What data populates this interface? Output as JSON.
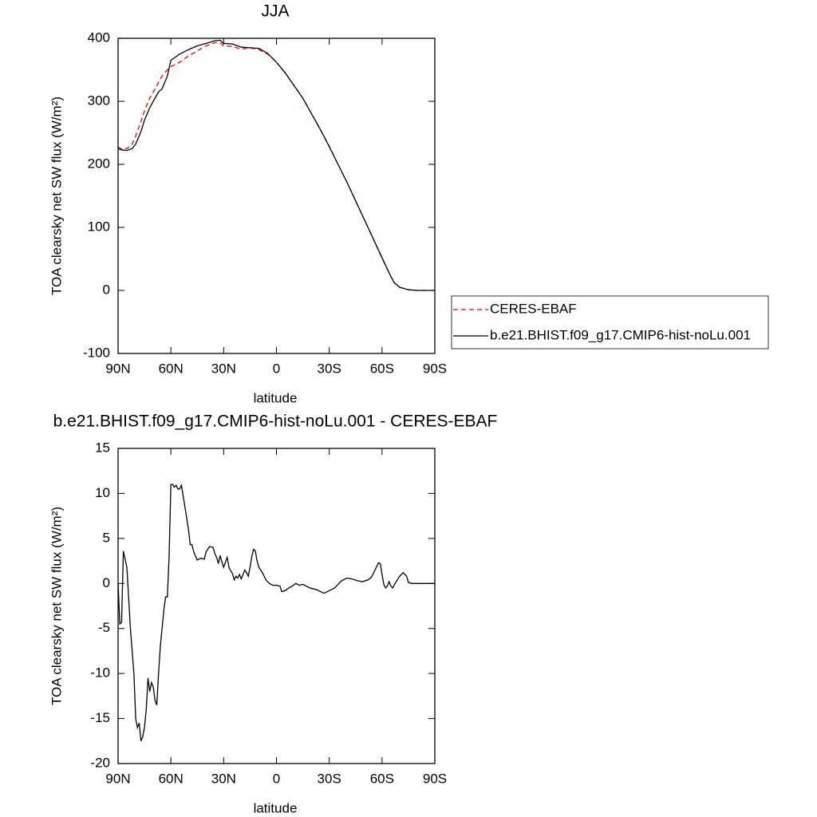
{
  "chart_data": [
    {
      "type": "line",
      "title": "JJA",
      "x_label": "latitude",
      "y_label": "TOA clearsky net SW flux (W/m²)",
      "x": [
        90,
        88,
        85,
        82,
        80,
        77,
        75,
        72,
        70,
        67,
        65,
        62,
        60,
        55,
        50,
        45,
        40,
        35,
        32,
        30,
        25,
        20,
        15,
        10,
        5,
        0,
        -5,
        -10,
        -15,
        -20,
        -25,
        -30,
        -35,
        -40,
        -45,
        -50,
        -55,
        -60,
        -65,
        -67,
        -70,
        -75,
        -80,
        -85,
        -90
      ],
      "xlim": [
        90,
        -90
      ],
      "xticks": [
        {
          "value": 90,
          "label": "90N"
        },
        {
          "value": 60,
          "label": "60N"
        },
        {
          "value": 30,
          "label": "30N"
        },
        0,
        {
          "value": -30,
          "label": "30S"
        },
        {
          "value": -60,
          "label": "60S"
        },
        {
          "value": -90,
          "label": "90S"
        }
      ],
      "ylim": [
        -100,
        400
      ],
      "yticks": [
        -100,
        0,
        100,
        200,
        300,
        400
      ],
      "legend": "outside-right",
      "series": [
        {
          "name": "CERES-EBAF",
          "color": "#ff0000",
          "dash": "dashed",
          "values": [
            228,
            224,
            225,
            232,
            245,
            268,
            285,
            305,
            315,
            330,
            340,
            350,
            355,
            362,
            372,
            380,
            388,
            393,
            393,
            388,
            387,
            383,
            385,
            382,
            375,
            362,
            345,
            325,
            305,
            280,
            255,
            229,
            200,
            172,
            142,
            112,
            82,
            51,
            22,
            12,
            5,
            1,
            0,
            0,
            0
          ]
        },
        {
          "name": "b.e21.BHIST.f09_g17.CMIP6-hist-noLu.001",
          "color": "#000000",
          "dash": "solid",
          "values": [
            225,
            223,
            222,
            225,
            232,
            252,
            270,
            290,
            300,
            315,
            320,
            340,
            365,
            375,
            382,
            388,
            392,
            396,
            397,
            392,
            391,
            386,
            385,
            384,
            376,
            362,
            345,
            325,
            305,
            280,
            255,
            228,
            200,
            172,
            142,
            112,
            82,
            52,
            22,
            12,
            5,
            1,
            0,
            0,
            0
          ]
        }
      ]
    },
    {
      "type": "line",
      "title": "b.e21.BHIST.f09_g17.CMIP6-hist-noLu.001 - CERES-EBAF",
      "x_label": "latitude",
      "y_label": "TOA clearsky net SW flux (W/m²)",
      "x": [
        90,
        89,
        88,
        87,
        85,
        83,
        81,
        80,
        79,
        78,
        77,
        76,
        75,
        74,
        73,
        72,
        71,
        70,
        69,
        68,
        67,
        66,
        64,
        63,
        62,
        61,
        60,
        59,
        58,
        57,
        56,
        55,
        54,
        52,
        50,
        49,
        48,
        47,
        45,
        43,
        41,
        40,
        38,
        36,
        35,
        34,
        33,
        32,
        31,
        30,
        28,
        27,
        26,
        25,
        24,
        23,
        22,
        21,
        20,
        18,
        17,
        16,
        15,
        14,
        13,
        12,
        11,
        10,
        8,
        6,
        4,
        2,
        0,
        -2,
        -3,
        -5,
        -7,
        -9,
        -11,
        -13,
        -15,
        -17,
        -19,
        -21,
        -23,
        -25,
        -27,
        -29,
        -31,
        -33,
        -35,
        -37,
        -40,
        -43,
        -46,
        -49,
        -52,
        -54,
        -56,
        -58,
        -59,
        -60,
        -61,
        -62,
        -63,
        -64,
        -65,
        -66,
        -68,
        -70,
        -72,
        -74,
        -75,
        -77,
        -80,
        -90
      ],
      "values": [
        0,
        -4.5,
        -4.3,
        3.6,
        1.8,
        -5,
        -10,
        -15,
        -16,
        -15.5,
        -17.5,
        -17,
        -16,
        -14,
        -10.5,
        -12,
        -11,
        -11.5,
        -13,
        -13.5,
        -10,
        -7,
        -3,
        -1.5,
        -1.5,
        3,
        11,
        11,
        10.7,
        10.9,
        10.5,
        10.5,
        10.9,
        8.5,
        6,
        4.3,
        4.3,
        3.5,
        2.6,
        2.8,
        2.7,
        3.5,
        4.1,
        4,
        3.3,
        2.9,
        2.2,
        3.1,
        2.4,
        1.8,
        2.9,
        1.8,
        1.4,
        1.1,
        0.4,
        0.8,
        0.6,
        1,
        0.5,
        1.5,
        1.2,
        0.8,
        1.8,
        3,
        3.8,
        3.6,
        2.5,
        1.8,
        1.2,
        0.4,
        0,
        -0.2,
        -0.2,
        -0.3,
        -0.9,
        -0.8,
        -0.5,
        -0.3,
        0,
        -0.2,
        -0.1,
        -0.3,
        -0.5,
        -0.6,
        -0.7,
        -0.9,
        -1.1,
        -0.9,
        -0.7,
        -0.5,
        -0.1,
        0.3,
        0.6,
        0.5,
        0.3,
        0.2,
        0.4,
        0.7,
        1.5,
        2.3,
        2.2,
        1,
        -0.1,
        -0.5,
        -0.3,
        0.2,
        -0.3,
        -0.5,
        0.2,
        0.8,
        1.2,
        0.8,
        0.1,
        0,
        0,
        0
      ],
      "color": "#000000",
      "xlim": [
        90,
        -90
      ],
      "xticks": [
        {
          "value": 90,
          "label": "90N"
        },
        {
          "value": 60,
          "label": "60N"
        },
        {
          "value": 30,
          "label": "30N"
        },
        0,
        {
          "value": -30,
          "label": "30S"
        },
        {
          "value": -60,
          "label": "60S"
        },
        {
          "value": -90,
          "label": "90S"
        }
      ],
      "ylim": [
        -20,
        15
      ],
      "yticks": [
        -20,
        -15,
        -10,
        -5,
        0,
        5,
        10,
        15
      ]
    }
  ]
}
